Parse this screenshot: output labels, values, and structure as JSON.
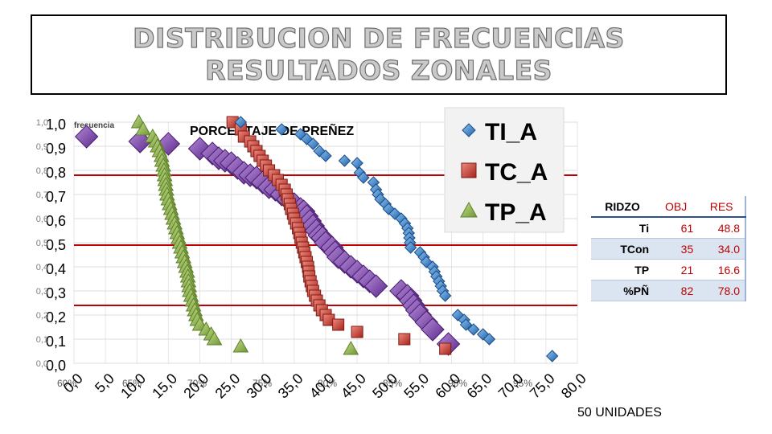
{
  "title": {
    "line1": "DISTRIBUCION DE FRECUENCIAS",
    "line2": "RESULTADOS ZONALES"
  },
  "units_label": "50 UNIDADES",
  "table": {
    "headers": [
      "RIDZO",
      "OBJ",
      "RES"
    ],
    "rows": [
      {
        "label": "Ti",
        "obj": "61",
        "res": "48.8"
      },
      {
        "label": "TCon",
        "obj": "35",
        "res": "34.0"
      },
      {
        "label": "TP",
        "obj": "21",
        "res": "16.6"
      },
      {
        "label": "%PÑ",
        "obj": "82",
        "res": "78.0"
      }
    ]
  },
  "colors": {
    "ti": "#2e75b6",
    "tc": "#c0392b",
    "tp": "#8fb548",
    "pct": "#7030a0",
    "ref_lines": "#c00000"
  },
  "chart_data": {
    "type": "scatter",
    "subtitle": "PORCENTAJE DE PREÑEZ",
    "ylabel": "frecuencia",
    "xlim": [
      0,
      80
    ],
    "ylim": [
      0,
      1
    ],
    "grid": true,
    "legend_position": "top-right",
    "x_ticks": [
      "0,0",
      "5,0",
      "10,0",
      "15,0",
      "20,0",
      "25,0",
      "30,0",
      "35,0",
      "40,0",
      "45,0",
      "50,0",
      "55,0",
      "60,0",
      "65,0",
      "70,0",
      "75,0",
      "80,0"
    ],
    "x_ticks_secondary": [
      "60%",
      "65%",
      "70%",
      "75%",
      "80%",
      "85%",
      "90%",
      "95%"
    ],
    "y_ticks": [
      "0,0",
      "0,1",
      "0,2",
      "0,3",
      "0,4",
      "0,5",
      "0,6",
      "0,7",
      "0,8",
      "0,9",
      "1,0"
    ],
    "reference_lines": [
      0.78,
      0.49,
      0.24
    ],
    "series": [
      {
        "name": "TI_A",
        "marker": "diamond",
        "points": [
          [
            26.5,
            1.0
          ],
          [
            33,
            0.97
          ],
          [
            36,
            0.95
          ],
          [
            37,
            0.93
          ],
          [
            38,
            0.91
          ],
          [
            39,
            0.88
          ],
          [
            40,
            0.86
          ],
          [
            43,
            0.84
          ],
          [
            45,
            0.83
          ],
          [
            45.4,
            0.79
          ],
          [
            46,
            0.77
          ],
          [
            47.6,
            0.75
          ],
          [
            48,
            0.72
          ],
          [
            48.3,
            0.7
          ],
          [
            48.7,
            0.68
          ],
          [
            49.5,
            0.66
          ],
          [
            50,
            0.64
          ],
          [
            51,
            0.62
          ],
          [
            52,
            0.6
          ],
          [
            52.6,
            0.58
          ],
          [
            53,
            0.56
          ],
          [
            53.2,
            0.54
          ],
          [
            53.3,
            0.52
          ],
          [
            53.4,
            0.5
          ],
          [
            53.5,
            0.48
          ],
          [
            55,
            0.46
          ],
          [
            55.6,
            0.44
          ],
          [
            56,
            0.42
          ],
          [
            57,
            0.4
          ],
          [
            57.3,
            0.38
          ],
          [
            57.6,
            0.36
          ],
          [
            58,
            0.34
          ],
          [
            58.3,
            0.32
          ],
          [
            58.6,
            0.3
          ],
          [
            59,
            0.28
          ],
          [
            61,
            0.2
          ],
          [
            62,
            0.18
          ],
          [
            62.3,
            0.16
          ],
          [
            63.5,
            0.14
          ],
          [
            65,
            0.12
          ],
          [
            66,
            0.1
          ],
          [
            76,
            0.03
          ]
        ]
      },
      {
        "name": "TC_A",
        "marker": "square",
        "points": [
          [
            25.2,
            1.0
          ],
          [
            26.5,
            0.97
          ],
          [
            27,
            0.94
          ],
          [
            28,
            0.92
          ],
          [
            28.5,
            0.9
          ],
          [
            29,
            0.88
          ],
          [
            29.5,
            0.86
          ],
          [
            30,
            0.84
          ],
          [
            30.5,
            0.82
          ],
          [
            31,
            0.8
          ],
          [
            31.8,
            0.78
          ],
          [
            32.4,
            0.76
          ],
          [
            33,
            0.74
          ],
          [
            33.5,
            0.72
          ],
          [
            33.8,
            0.7
          ],
          [
            34,
            0.68
          ],
          [
            34.3,
            0.66
          ],
          [
            34.5,
            0.64
          ],
          [
            34.8,
            0.62
          ],
          [
            35,
            0.6
          ],
          [
            35.3,
            0.58
          ],
          [
            35.6,
            0.56
          ],
          [
            35.8,
            0.54
          ],
          [
            36,
            0.52
          ],
          [
            36.2,
            0.5
          ],
          [
            36.4,
            0.48
          ],
          [
            36.6,
            0.46
          ],
          [
            36.8,
            0.44
          ],
          [
            37,
            0.42
          ],
          [
            37.2,
            0.4
          ],
          [
            37.3,
            0.38
          ],
          [
            37.4,
            0.36
          ],
          [
            37.6,
            0.34
          ],
          [
            37.8,
            0.32
          ],
          [
            38,
            0.3
          ],
          [
            38.3,
            0.28
          ],
          [
            38.6,
            0.26
          ],
          [
            39,
            0.24
          ],
          [
            39.4,
            0.22
          ],
          [
            40,
            0.2
          ],
          [
            40.5,
            0.18
          ],
          [
            42,
            0.16
          ],
          [
            45,
            0.13
          ],
          [
            52.5,
            0.1
          ],
          [
            59,
            0.06
          ]
        ]
      },
      {
        "name": "TP_A",
        "marker": "triangle",
        "points": [
          [
            10.3,
            1.0
          ],
          [
            11,
            0.97
          ],
          [
            12.5,
            0.94
          ],
          [
            13,
            0.92
          ],
          [
            13.3,
            0.9
          ],
          [
            13.6,
            0.88
          ],
          [
            13.9,
            0.86
          ],
          [
            14,
            0.84
          ],
          [
            14.2,
            0.82
          ],
          [
            14.3,
            0.8
          ],
          [
            14.4,
            0.78
          ],
          [
            14.5,
            0.76
          ],
          [
            14.6,
            0.74
          ],
          [
            14.7,
            0.72
          ],
          [
            14.8,
            0.7
          ],
          [
            15,
            0.68
          ],
          [
            15.2,
            0.66
          ],
          [
            15.4,
            0.64
          ],
          [
            15.6,
            0.62
          ],
          [
            15.8,
            0.6
          ],
          [
            16,
            0.58
          ],
          [
            16.2,
            0.56
          ],
          [
            16.4,
            0.54
          ],
          [
            16.6,
            0.52
          ],
          [
            16.8,
            0.5
          ],
          [
            17,
            0.48
          ],
          [
            17.2,
            0.46
          ],
          [
            17.4,
            0.44
          ],
          [
            17.6,
            0.42
          ],
          [
            17.8,
            0.4
          ],
          [
            18,
            0.38
          ],
          [
            18.1,
            0.36
          ],
          [
            18.2,
            0.34
          ],
          [
            18.3,
            0.32
          ],
          [
            18.4,
            0.3
          ],
          [
            18.6,
            0.28
          ],
          [
            18.8,
            0.26
          ],
          [
            19,
            0.24
          ],
          [
            19.2,
            0.22
          ],
          [
            19.4,
            0.2
          ],
          [
            19.6,
            0.18
          ],
          [
            20,
            0.16
          ],
          [
            21,
            0.14
          ],
          [
            21.8,
            0.12
          ],
          [
            22.3,
            0.1
          ],
          [
            26.5,
            0.07
          ],
          [
            44,
            0.06
          ]
        ]
      },
      {
        "name": "",
        "marker": "diamond-large",
        "points": [
          [
            2,
            0.94
          ],
          [
            10.5,
            0.92
          ],
          [
            15,
            0.91
          ],
          [
            20,
            0.89
          ],
          [
            22,
            0.87
          ],
          [
            23,
            0.85
          ],
          [
            24,
            0.84
          ],
          [
            25,
            0.83
          ],
          [
            26,
            0.81
          ],
          [
            27,
            0.79
          ],
          [
            28,
            0.78
          ],
          [
            29,
            0.77
          ],
          [
            30,
            0.75
          ],
          [
            31,
            0.73
          ],
          [
            32,
            0.72
          ],
          [
            33,
            0.7
          ],
          [
            34,
            0.68
          ],
          [
            35,
            0.66
          ],
          [
            36,
            0.64
          ],
          [
            36.5,
            0.63
          ],
          [
            37,
            0.61
          ],
          [
            37.5,
            0.59
          ],
          [
            38,
            0.57
          ],
          [
            38.5,
            0.55
          ],
          [
            39,
            0.53
          ],
          [
            39.5,
            0.52
          ],
          [
            40,
            0.5
          ],
          [
            41,
            0.48
          ],
          [
            41.5,
            0.46
          ],
          [
            42,
            0.44
          ],
          [
            43,
            0.42
          ],
          [
            44,
            0.4
          ],
          [
            45,
            0.38
          ],
          [
            46,
            0.36
          ],
          [
            47,
            0.34
          ],
          [
            48,
            0.32
          ],
          [
            52,
            0.3
          ],
          [
            53,
            0.28
          ],
          [
            53.5,
            0.26
          ],
          [
            54,
            0.24
          ],
          [
            54.5,
            0.22
          ],
          [
            55,
            0.2
          ],
          [
            56,
            0.17
          ],
          [
            57,
            0.14
          ],
          [
            59.5,
            0.08
          ]
        ]
      }
    ]
  }
}
